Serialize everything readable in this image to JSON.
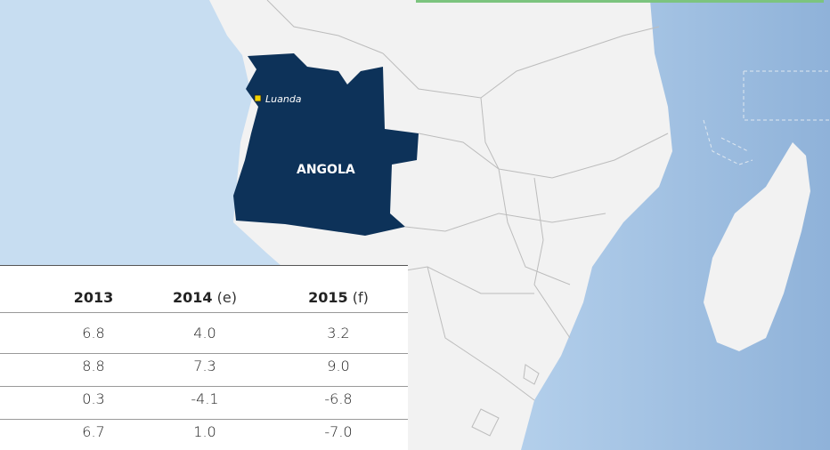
{
  "map": {
    "country": "ANGOLA",
    "city": "Luanda"
  },
  "table": {
    "headers": [
      {
        "year": "2013"
      },
      {
        "year": "2014",
        "note": "(e)"
      },
      {
        "year": "2015",
        "note": "(f)"
      }
    ],
    "rows": [
      [
        "6.8",
        "4.0",
        "3.2"
      ],
      [
        "8.8",
        "7.3",
        "9.0"
      ],
      [
        "0.3",
        "-4.1",
        "-6.8"
      ],
      [
        "6.7",
        "1.0",
        "-7.0"
      ]
    ]
  }
}
